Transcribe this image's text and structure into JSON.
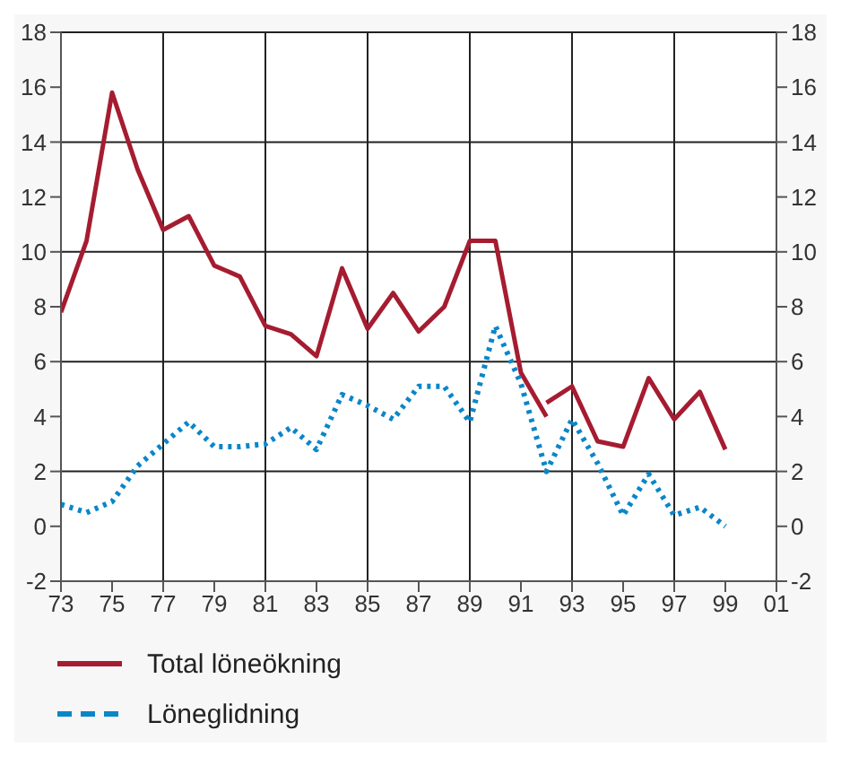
{
  "chart_data": {
    "type": "line",
    "xlim": [
      "1973",
      "2001"
    ],
    "xticks": [
      {
        "value": "1973",
        "label": "73"
      },
      {
        "value": "1975",
        "label": "75"
      },
      {
        "value": "1977",
        "label": "77"
      },
      {
        "value": "1979",
        "label": "79"
      },
      {
        "value": "1981",
        "label": "81"
      },
      {
        "value": "1983",
        "label": "83"
      },
      {
        "value": "1985",
        "label": "85"
      },
      {
        "value": "1987",
        "label": "87"
      },
      {
        "value": "1989",
        "label": "89"
      },
      {
        "value": "1991",
        "label": "91"
      },
      {
        "value": "1993",
        "label": "93"
      },
      {
        "value": "1995",
        "label": "95"
      },
      {
        "value": "1997",
        "label": "97"
      },
      {
        "value": "1999",
        "label": "99"
      },
      {
        "value": "2001",
        "label": "01"
      }
    ],
    "ylim": [
      -2,
      18
    ],
    "yticks": [
      -2,
      0,
      2,
      4,
      6,
      8,
      10,
      12,
      14,
      16,
      18
    ],
    "y2lim": [
      -2,
      18
    ],
    "y2ticks": [
      -2,
      0,
      2,
      4,
      6,
      8,
      10,
      12,
      14,
      16,
      18
    ],
    "grid": true,
    "legend": "bottom",
    "series": [
      {
        "name": "Total löneökning",
        "color": "#a51c30",
        "line_style": "solid",
        "x": [
          "1973",
          "1974",
          "1975",
          "1976",
          "1977",
          "1978",
          "1979",
          "1980",
          "1981",
          "1982",
          "1983",
          "1984",
          "1985",
          "1986",
          "1987",
          "1988",
          "1989",
          "1990",
          "1991",
          "1992"
        ],
        "values": [
          7.8,
          10.4,
          15.8,
          13,
          10.8,
          11.3,
          9.5,
          9.1,
          7.3,
          7.0,
          6.2,
          9.4,
          7.2,
          8.5,
          7.1,
          8.0,
          10.4,
          10.4,
          5.6,
          4.0
        ]
      },
      {
        "color": "#a51c30",
        "line_style": "solid",
        "x": [
          "1992",
          "1993",
          "1994",
          "1995",
          "1996",
          "1997",
          "1998",
          "1999"
        ],
        "values": [
          4.5,
          5.1,
          3.1,
          2.9,
          5.4,
          3.9,
          4.9,
          2.8
        ]
      },
      {
        "name": "Löneglidning",
        "color": "#0a86c9",
        "line_style": "dotted",
        "x": [
          "1973",
          "1974",
          "1975",
          "1976",
          "1977",
          "1978",
          "1979",
          "1980",
          "1981",
          "1982",
          "1983",
          "1984",
          "1985",
          "1986",
          "1987",
          "1988",
          "1989",
          "1990",
          "1991",
          "1992",
          "1993",
          "1994",
          "1995",
          "1996",
          "1997",
          "1998",
          "1999"
        ],
        "values": [
          0.8,
          0.5,
          0.9,
          2.2,
          3.0,
          3.8,
          2.9,
          2.9,
          3.0,
          3.6,
          2.8,
          4.8,
          4.4,
          3.9,
          5.1,
          5.1,
          3.8,
          7.3,
          5.2,
          2.0,
          3.9,
          2.3,
          0.4,
          1.9,
          0.4,
          0.7,
          0.0
        ]
      }
    ]
  }
}
